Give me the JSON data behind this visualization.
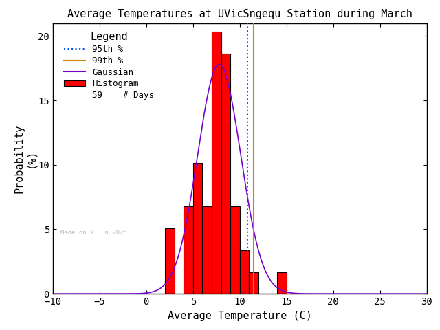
{
  "title": "Average Temperatures at UVicSngequ Station during March",
  "xlabel": "Average Temperature (C)",
  "ylabel1": "Probability",
  "ylabel2": "(%)",
  "xlim": [
    -10,
    30
  ],
  "ylim": [
    0,
    21
  ],
  "yticks": [
    0,
    5,
    10,
    15,
    20
  ],
  "xticks": [
    -10,
    -5,
    0,
    5,
    10,
    15,
    20,
    25,
    30
  ],
  "bin_edges": [
    2,
    3,
    4,
    5,
    6,
    7,
    8,
    9,
    10,
    11,
    12,
    13,
    14,
    15
  ],
  "bin_heights": [
    5.08,
    0.0,
    6.78,
    10.17,
    6.78,
    20.34,
    18.64,
    6.78,
    3.39,
    1.69,
    0.0,
    0.0,
    1.69
  ],
  "bar_color": "#ff0000",
  "bar_edgecolor": "#000000",
  "gauss_color": "#7700cc",
  "gauss_mean": 7.8,
  "gauss_std": 2.3,
  "gauss_peak": 17.8,
  "percentile_95": 10.8,
  "percentile_99": 11.5,
  "n_days": 59,
  "watermark": "Made on 9 Jun 2025",
  "legend_title": "Legend",
  "bg_color": "#ffffff",
  "font_family": "monospace"
}
